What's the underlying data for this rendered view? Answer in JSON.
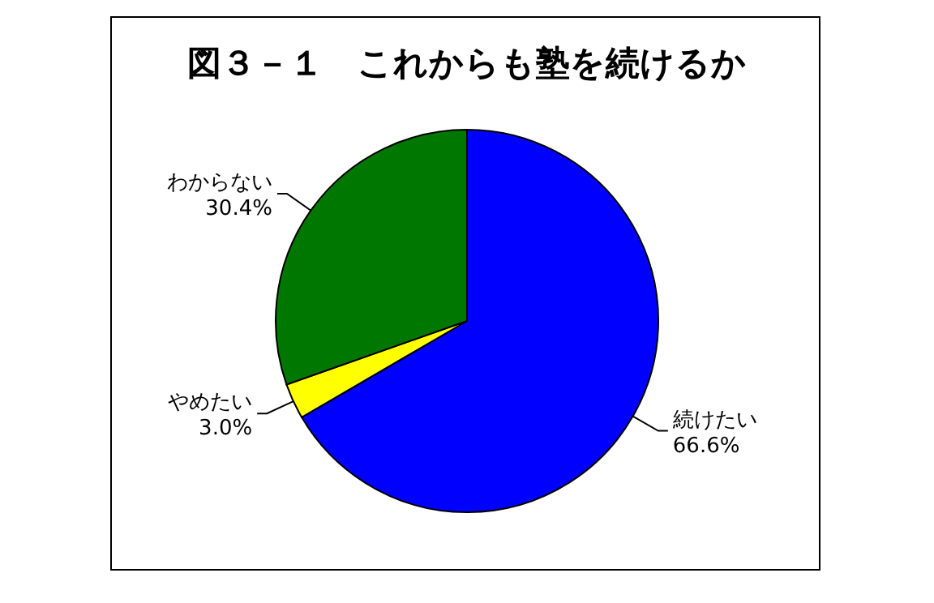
{
  "chart_data": {
    "type": "pie",
    "title": "図３－１　これからも塾を続けるか",
    "categories": [
      "続けたい",
      "やめたい",
      "わからない"
    ],
    "values": [
      66.6,
      3.0,
      30.4
    ],
    "value_labels": [
      "66.6%",
      "3.0%",
      "30.4%"
    ],
    "colors": [
      "#0000ff",
      "#ffff00",
      "#007700"
    ],
    "legend": false
  }
}
